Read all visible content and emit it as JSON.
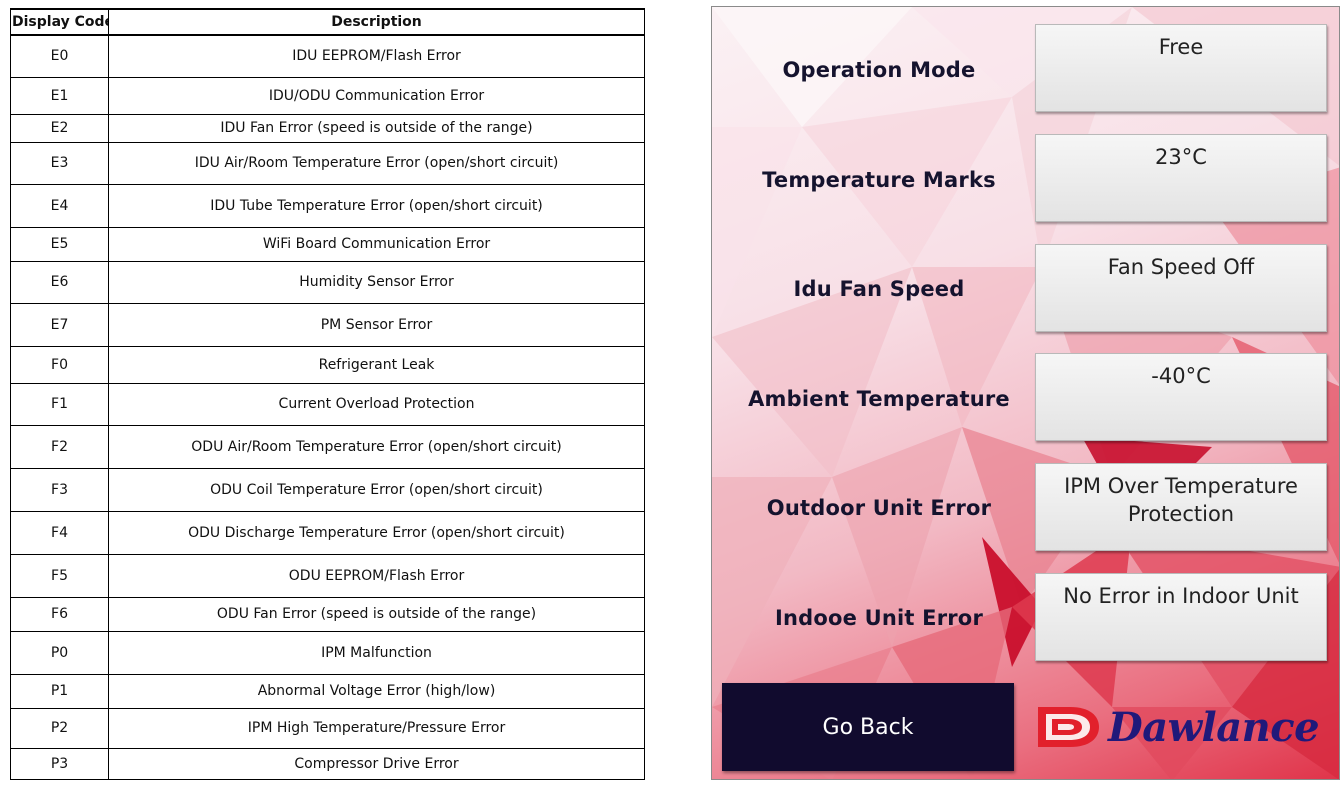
{
  "table": {
    "headers": {
      "code": "Display Code",
      "description": "Description"
    },
    "rows": [
      {
        "code": "E0",
        "description": "IDU EEPROM/Flash Error"
      },
      {
        "code": "E1",
        "description": "IDU/ODU Communication Error"
      },
      {
        "code": "E2",
        "description": "IDU Fan Error (speed is outside of the range)"
      },
      {
        "code": "E3",
        "description": "IDU Air/Room Temperature Error (open/short circuit)"
      },
      {
        "code": "E4",
        "description": "IDU Tube Temperature Error (open/short circuit)"
      },
      {
        "code": "E5",
        "description": "WiFi Board Communication Error"
      },
      {
        "code": "E6",
        "description": "Humidity Sensor Error"
      },
      {
        "code": "E7",
        "description": "PM Sensor Error"
      },
      {
        "code": "F0",
        "description": "Refrigerant Leak"
      },
      {
        "code": "F1",
        "description": "Current Overload Protection"
      },
      {
        "code": "F2",
        "description": "ODU Air/Room Temperature Error (open/short circuit)"
      },
      {
        "code": "F3",
        "description": "ODU Coil Temperature Error (open/short circuit)"
      },
      {
        "code": "F4",
        "description": "ODU Discharge Temperature Error (open/short circuit)"
      },
      {
        "code": "F5",
        "description": "ODU EEPROM/Flash Error"
      },
      {
        "code": "F6",
        "description": "ODU Fan Error (speed is outside of the range)"
      },
      {
        "code": "P0",
        "description": "IPM Malfunction"
      },
      {
        "code": "P1",
        "description": "Abnormal Voltage Error (high/low)"
      },
      {
        "code": "P2",
        "description": "IPM High Temperature/Pressure Error"
      },
      {
        "code": "P3",
        "description": "Compressor Drive Error"
      }
    ]
  },
  "panel": {
    "rows": [
      {
        "label": "Operation Mode",
        "value": "Free"
      },
      {
        "label": "Temperature Marks",
        "value": "23°C"
      },
      {
        "label": "Idu Fan Speed",
        "value": "Fan Speed Off"
      },
      {
        "label": "Ambient Temperature",
        "value": "-40°C"
      },
      {
        "label": "Outdoor Unit Error",
        "value": "IPM Over Temperature Protection"
      },
      {
        "label": "Indooe Unit Error",
        "value": "No Error in Indoor Unit"
      }
    ],
    "go_back_label": "Go Back",
    "brand": {
      "name": "Dawlance"
    }
  },
  "colors": {
    "button_bg": "#110b2e",
    "brand_red": "#e2202c",
    "brand_blue": "#20197a",
    "label_text": "#15132e"
  }
}
